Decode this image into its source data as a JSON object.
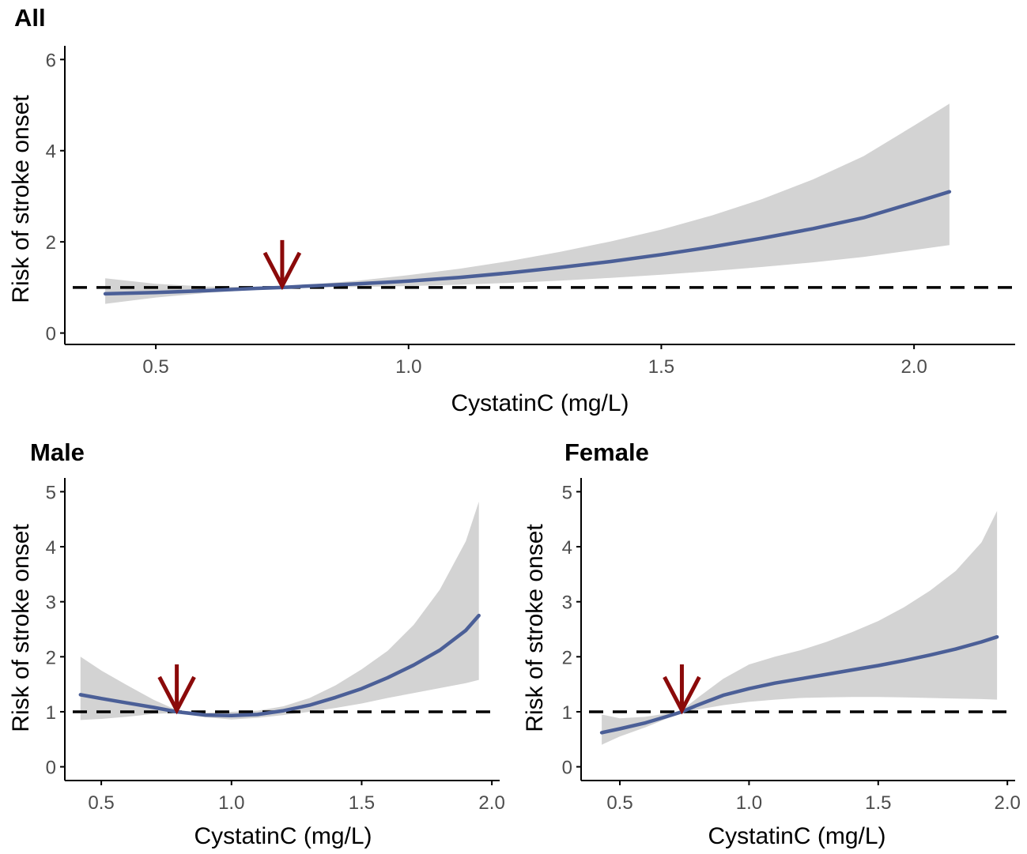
{
  "figure": {
    "colors": {
      "line": "#4b5f97",
      "band": "#d3d3d3",
      "arrow": "#8b0a0a",
      "reference": "#000000",
      "axis": "#000000",
      "tick_text": "#4d4d4d"
    }
  },
  "chart_data": [
    {
      "type": "line",
      "title": "All",
      "xlabel": "CystatinC (mg/L)",
      "ylabel": "Risk of stroke onset",
      "xlim": [
        0.32,
        2.2
      ],
      "ylim": [
        -0.25,
        6.3
      ],
      "xticks": [
        0.5,
        1.0,
        1.5,
        2.0
      ],
      "xtick_labels": [
        "0.5",
        "1.0",
        "1.5",
        "2.0"
      ],
      "yticks": [
        0,
        2,
        4,
        6
      ],
      "ytick_labels": [
        "0",
        "2",
        "4",
        "6"
      ],
      "reference_y": 1,
      "arrow_x": 0.75,
      "series": [
        {
          "name": "estimate",
          "x": [
            0.4,
            0.5,
            0.6,
            0.7,
            0.75,
            0.8,
            0.9,
            1.0,
            1.1,
            1.2,
            1.3,
            1.4,
            1.5,
            1.6,
            1.7,
            1.8,
            1.9,
            2.0,
            2.07
          ],
          "y": [
            0.86,
            0.89,
            0.93,
            0.98,
            1.0,
            1.03,
            1.08,
            1.14,
            1.22,
            1.32,
            1.44,
            1.57,
            1.72,
            1.89,
            2.08,
            2.29,
            2.53,
            2.86,
            3.1
          ],
          "lower": [
            0.64,
            0.78,
            0.88,
            0.95,
            0.98,
            1.0,
            1.01,
            1.03,
            1.06,
            1.1,
            1.15,
            1.21,
            1.28,
            1.36,
            1.45,
            1.55,
            1.67,
            1.82,
            1.93
          ],
          "upper": [
            1.2,
            1.08,
            1.02,
            1.01,
            1.02,
            1.06,
            1.15,
            1.27,
            1.41,
            1.58,
            1.78,
            2.01,
            2.27,
            2.58,
            2.94,
            3.37,
            3.88,
            4.55,
            5.03
          ]
        }
      ]
    },
    {
      "type": "line",
      "title": "Male",
      "xlabel": "CystatinC (mg/L)",
      "ylabel": "Risk of stroke onset",
      "xlim": [
        0.36,
        2.03
      ],
      "ylim": [
        -0.25,
        5.25
      ],
      "xticks": [
        0.5,
        1.0,
        1.5,
        2.0
      ],
      "xtick_labels": [
        "0.5",
        "1.0",
        "1.5",
        "2.0"
      ],
      "yticks": [
        0,
        1,
        2,
        3,
        4,
        5
      ],
      "ytick_labels": [
        "0",
        "1",
        "2",
        "3",
        "4",
        "5"
      ],
      "reference_y": 1,
      "arrow_x": 0.79,
      "series": [
        {
          "name": "estimate",
          "x": [
            0.42,
            0.5,
            0.6,
            0.7,
            0.79,
            0.9,
            1.0,
            1.1,
            1.2,
            1.3,
            1.4,
            1.5,
            1.6,
            1.7,
            1.8,
            1.9,
            1.95
          ],
          "y": [
            1.31,
            1.24,
            1.16,
            1.08,
            1.0,
            0.94,
            0.93,
            0.95,
            1.02,
            1.12,
            1.26,
            1.42,
            1.62,
            1.85,
            2.12,
            2.48,
            2.75
          ],
          "lower": [
            0.85,
            0.87,
            0.91,
            0.96,
            0.98,
            0.9,
            0.86,
            0.89,
            0.94,
            1.0,
            1.07,
            1.15,
            1.25,
            1.34,
            1.43,
            1.52,
            1.58
          ],
          "upper": [
            2.0,
            1.75,
            1.48,
            1.22,
            1.03,
            0.98,
            1.0,
            1.02,
            1.1,
            1.25,
            1.48,
            1.77,
            2.11,
            2.58,
            3.22,
            4.1,
            4.82
          ]
        }
      ]
    },
    {
      "type": "line",
      "title": "Female",
      "xlabel": "CystatinC (mg/L)",
      "ylabel": "Risk of stroke onset",
      "xlim": [
        0.35,
        2.03
      ],
      "ylim": [
        -0.25,
        5.25
      ],
      "xticks": [
        0.5,
        1.0,
        1.5,
        2.0
      ],
      "xtick_labels": [
        "0.5",
        "1.0",
        "1.5",
        "2.0"
      ],
      "yticks": [
        0,
        1,
        2,
        3,
        4,
        5
      ],
      "ytick_labels": [
        "0",
        "1",
        "2",
        "3",
        "4",
        "5"
      ],
      "reference_y": 1,
      "arrow_x": 0.74,
      "series": [
        {
          "name": "estimate",
          "x": [
            0.43,
            0.5,
            0.6,
            0.7,
            0.74,
            0.8,
            0.9,
            1.0,
            1.1,
            1.2,
            1.3,
            1.4,
            1.5,
            1.6,
            1.7,
            1.8,
            1.9,
            1.96
          ],
          "y": [
            0.62,
            0.69,
            0.8,
            0.94,
            1.0,
            1.12,
            1.3,
            1.42,
            1.52,
            1.6,
            1.68,
            1.76,
            1.84,
            1.93,
            2.03,
            2.14,
            2.27,
            2.36
          ],
          "lower": [
            0.4,
            0.55,
            0.72,
            0.91,
            0.98,
            1.04,
            1.12,
            1.18,
            1.22,
            1.25,
            1.26,
            1.27,
            1.27,
            1.26,
            1.25,
            1.24,
            1.23,
            1.22
          ],
          "upper": [
            0.95,
            0.88,
            0.91,
            0.98,
            1.03,
            1.25,
            1.6,
            1.86,
            2.0,
            2.12,
            2.27,
            2.45,
            2.65,
            2.9,
            3.2,
            3.56,
            4.08,
            4.65
          ]
        }
      ]
    }
  ]
}
